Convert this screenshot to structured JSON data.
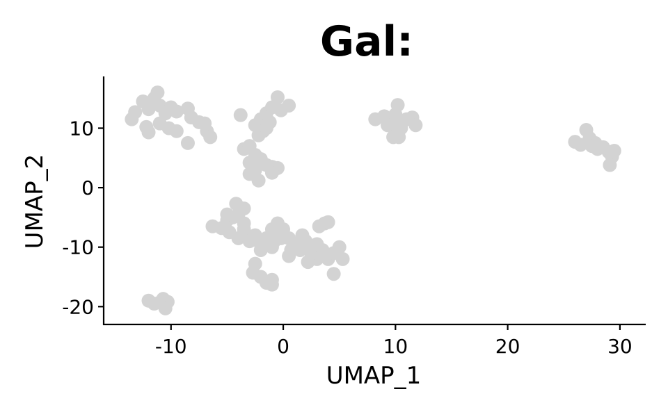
{
  "chart_data": {
    "type": "scatter",
    "title": "Gal:",
    "xlabel": "UMAP_1",
    "ylabel": "UMAP_2",
    "xlim": [
      -16.0,
      32.3
    ],
    "ylim": [
      -23.0,
      18.7
    ],
    "xticks": [
      -10,
      0,
      10,
      20,
      30
    ],
    "yticks": [
      -20,
      -10,
      0,
      10
    ],
    "xtick_labels": [
      "-10",
      "0",
      "10",
      "20",
      "30"
    ],
    "ytick_labels": [
      "-20",
      "-10",
      "0",
      "10"
    ],
    "grid": false,
    "legend": "none",
    "point_color": "#d3d3d3",
    "series": [
      {
        "values": [
          [
            -13.5,
            11.5
          ],
          [
            -13.2,
            12.7
          ],
          [
            -12.5,
            14.5
          ],
          [
            -12.0,
            13.2
          ],
          [
            -11.5,
            15.0
          ],
          [
            -11.2,
            16.0
          ],
          [
            -11.0,
            13.8
          ],
          [
            -10.5,
            12.5
          ],
          [
            -10.0,
            13.5
          ],
          [
            -9.5,
            12.8
          ],
          [
            -12.2,
            10.2
          ],
          [
            -12.0,
            9.3
          ],
          [
            -11.0,
            10.8
          ],
          [
            -10.2,
            10.0
          ],
          [
            -9.5,
            9.5
          ],
          [
            -8.5,
            13.3
          ],
          [
            -8.2,
            11.8
          ],
          [
            -7.5,
            11.0
          ],
          [
            -7.0,
            10.8
          ],
          [
            -6.8,
            9.5
          ],
          [
            -6.5,
            8.5
          ],
          [
            -8.5,
            7.5
          ],
          [
            -3.8,
            12.2
          ],
          [
            -2.5,
            10.5
          ],
          [
            -2.0,
            11.5
          ],
          [
            -1.5,
            12.5
          ],
          [
            -1.0,
            13.5
          ],
          [
            -0.5,
            15.2
          ],
          [
            -0.2,
            13.0
          ],
          [
            0.5,
            13.8
          ],
          [
            -1.2,
            11.0
          ],
          [
            -1.8,
            9.5
          ],
          [
            -2.2,
            8.8
          ],
          [
            -1.5,
            10.0
          ],
          [
            -3.5,
            6.5
          ],
          [
            -3.0,
            7.0
          ],
          [
            -2.5,
            5.5
          ],
          [
            -3.0,
            4.2
          ],
          [
            -2.0,
            4.8
          ],
          [
            -1.5,
            3.8
          ],
          [
            -1.0,
            3.5
          ],
          [
            -0.5,
            3.3
          ],
          [
            -2.5,
            3.0
          ],
          [
            -3.0,
            2.3
          ],
          [
            -2.2,
            1.2
          ],
          [
            -1.0,
            2.5
          ],
          [
            -6.3,
            -6.5
          ],
          [
            -5.5,
            -6.8
          ],
          [
            -5.0,
            -5.5
          ],
          [
            -4.5,
            -5.0
          ],
          [
            -4.2,
            -2.7
          ],
          [
            -4.0,
            -4.5
          ],
          [
            -3.5,
            -3.5
          ],
          [
            -4.8,
            -7.5
          ],
          [
            -4.0,
            -8.5
          ],
          [
            -3.5,
            -7.0
          ],
          [
            -3.0,
            -9.0
          ],
          [
            -2.5,
            -8.0
          ],
          [
            -2.0,
            -9.5
          ],
          [
            -1.5,
            -8.5
          ],
          [
            -1.0,
            -7.0
          ],
          [
            -0.5,
            -6.0
          ],
          [
            0.0,
            -7.0
          ],
          [
            0.5,
            -8.5
          ],
          [
            1.0,
            -9.5
          ],
          [
            1.5,
            -10.5
          ],
          [
            2.0,
            -9.0
          ],
          [
            2.5,
            -11.0
          ],
          [
            3.0,
            -12.0
          ],
          [
            3.5,
            -10.5
          ],
          [
            4.0,
            -12.0
          ],
          [
            4.5,
            -11.0
          ],
          [
            5.0,
            -10.0
          ],
          [
            5.3,
            -12.0
          ],
          [
            4.5,
            -14.5
          ],
          [
            0.5,
            -11.5
          ],
          [
            -1.0,
            -10.0
          ],
          [
            -2.0,
            -10.5
          ],
          [
            1.7,
            -8.0
          ],
          [
            -0.2,
            -8.5
          ],
          [
            3.0,
            -9.5
          ],
          [
            -3.5,
            -6.0
          ],
          [
            -5.0,
            -4.5
          ],
          [
            0.7,
            -10.5
          ],
          [
            2.2,
            -12.5
          ],
          [
            -0.8,
            -9.0
          ],
          [
            3.2,
            -6.5
          ],
          [
            3.7,
            -6.0
          ],
          [
            4.0,
            -5.8
          ],
          [
            -2.5,
            -12.8
          ],
          [
            -2.7,
            -14.3
          ],
          [
            -2.0,
            -15.0
          ],
          [
            -1.5,
            -16.0
          ],
          [
            -1.0,
            -16.3
          ],
          [
            -1.0,
            -15.5
          ],
          [
            -12.0,
            -19.0
          ],
          [
            -11.5,
            -19.5
          ],
          [
            -11.0,
            -19.3
          ],
          [
            -10.7,
            -18.7
          ],
          [
            -10.3,
            -19.2
          ],
          [
            -10.5,
            -20.3
          ],
          [
            8.2,
            11.5
          ],
          [
            9.0,
            12.0
          ],
          [
            9.5,
            11.0
          ],
          [
            10.0,
            12.3
          ],
          [
            10.2,
            13.9
          ],
          [
            10.5,
            11.0
          ],
          [
            9.3,
            10.5
          ],
          [
            10.0,
            9.5
          ],
          [
            9.8,
            8.5
          ],
          [
            10.3,
            8.5
          ],
          [
            11.0,
            11.5
          ],
          [
            11.5,
            11.8
          ],
          [
            11.8,
            10.5
          ],
          [
            10.5,
            10.0
          ],
          [
            26.0,
            7.7
          ],
          [
            26.5,
            7.2
          ],
          [
            27.0,
            9.7
          ],
          [
            27.3,
            8.3
          ],
          [
            27.8,
            7.5
          ],
          [
            28.0,
            6.5
          ],
          [
            28.5,
            6.8
          ],
          [
            29.0,
            6.0
          ],
          [
            29.3,
            5.2
          ],
          [
            29.5,
            6.2
          ],
          [
            29.1,
            3.8
          ],
          [
            27.5,
            7.0
          ]
        ]
      }
    ]
  }
}
